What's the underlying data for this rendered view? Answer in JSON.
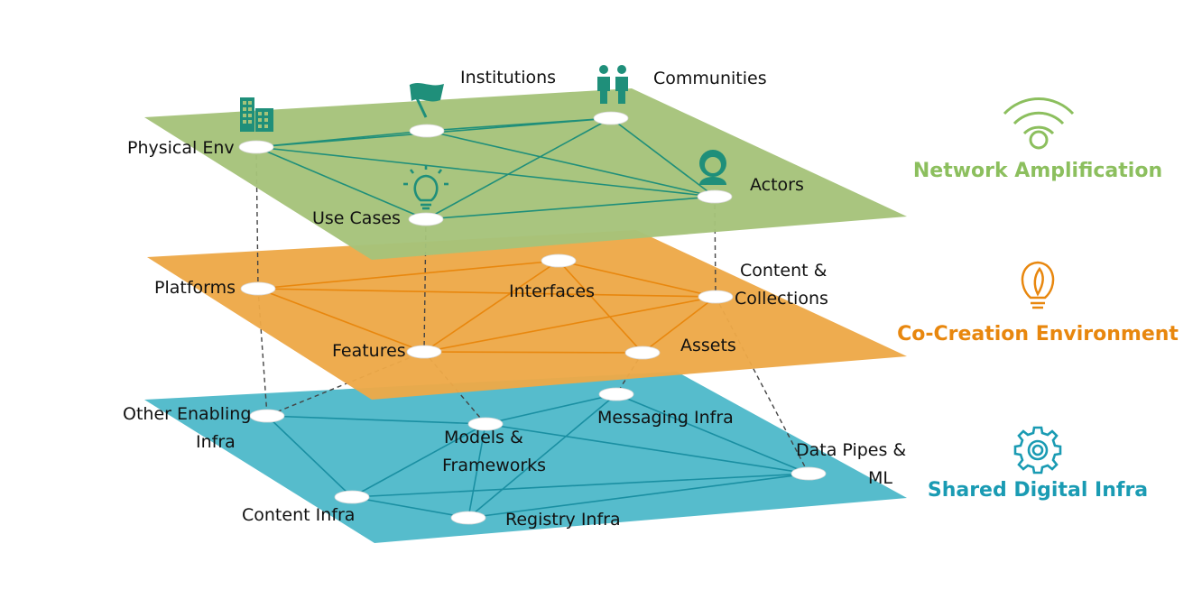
{
  "layers": {
    "top": {
      "color": "#a5c37a"
    },
    "middle": {
      "color": "#eda948"
    },
    "bottom": {
      "color": "#56bccc"
    }
  },
  "labels": {
    "institutions": "Institutions",
    "communities": "Communities",
    "physical_env": "Physical Env",
    "actors": "Actors",
    "use_cases": "Use Cases",
    "platforms": "Platforms",
    "interfaces": "Interfaces",
    "content_collections_1": "Content &",
    "content_collections_2": "Collections",
    "features": "Features",
    "assets": "Assets",
    "other_enabling_1": "Other Enabling",
    "other_enabling_2": "Infra",
    "messaging_infra": "Messaging Infra",
    "models_1": "Models &",
    "models_2": "Frameworks",
    "data_pipes_1": "Data Pipes &",
    "data_pipes_2": "ML",
    "content_infra": "Content Infra",
    "registry_infra": "Registry Infra"
  },
  "legend": {
    "network": {
      "label": "Network Amplification",
      "color": "#8cbf5e",
      "icon": "wifi-icon"
    },
    "cocreation": {
      "label": "Co-Creation Environment",
      "color": "#e8870e",
      "icon": "lightbulb-leaf-icon"
    },
    "infra": {
      "label": "Shared Digital Infra",
      "color": "#1a9bb3",
      "icon": "gear-icon"
    }
  }
}
